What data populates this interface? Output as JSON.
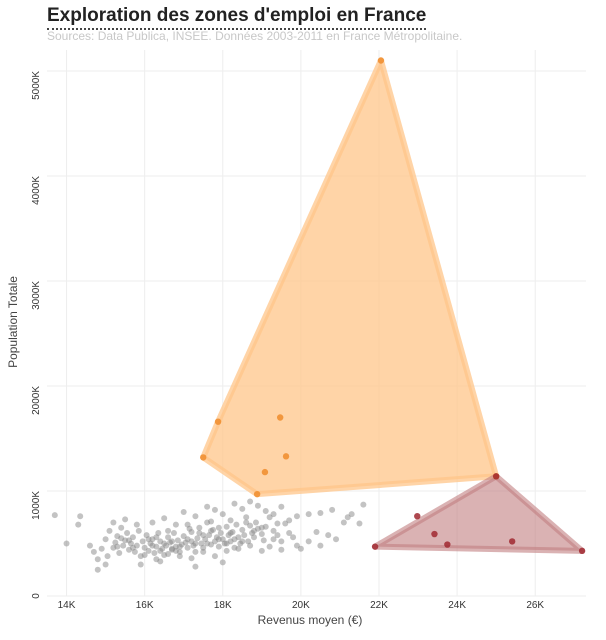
{
  "header": {
    "title": "Exploration des zones d'emploi en France",
    "subtitle": "Sources: Data Publica, INSEE. Données 2003-2011 en France Métropolitaine."
  },
  "colors": {
    "grey_points": "#888888",
    "orange_fill": "#ffc58a",
    "orange_points": "#f08c2c",
    "red_fill": "#c27e80",
    "red_points": "#a02830",
    "grid": "#eeeeee"
  },
  "chart_data": {
    "type": "scatter",
    "xlabel": "Revenus moyen (€)",
    "ylabel": "Population Totale",
    "xlim": [
      13500,
      27300
    ],
    "ylim": [
      0,
      5200000
    ],
    "x_ticks": [
      14000,
      16000,
      18000,
      20000,
      22000,
      24000,
      26000
    ],
    "x_tick_labels": [
      "14K",
      "16K",
      "18K",
      "20K",
      "22K",
      "24K",
      "26K"
    ],
    "y_ticks": [
      0,
      1000000,
      2000000,
      3000000,
      4000000,
      5000000
    ],
    "y_tick_labels": [
      "0",
      "1000K",
      "2000K",
      "3000K",
      "4000K",
      "5000K"
    ],
    "grid": true,
    "clusters": [
      {
        "color": "orange",
        "hull": [
          [
            22050,
            5100000
          ],
          [
            25000,
            1140000
          ],
          [
            18880,
            970000
          ],
          [
            17500,
            1320000
          ],
          [
            17880,
            1660000
          ]
        ],
        "points": [
          [
            22050,
            5100000
          ],
          [
            25000,
            1140000
          ],
          [
            18880,
            970000
          ],
          [
            17500,
            1320000
          ],
          [
            17880,
            1660000
          ],
          [
            19470,
            1700000
          ],
          [
            19620,
            1330000
          ],
          [
            19080,
            1180000
          ]
        ]
      },
      {
        "color": "red",
        "hull": [
          [
            25000,
            1140000
          ],
          [
            27200,
            430000
          ],
          [
            21900,
            470000
          ]
        ],
        "points": [
          [
            25000,
            1140000
          ],
          [
            27200,
            430000
          ],
          [
            21900,
            470000
          ],
          [
            22980,
            760000
          ],
          [
            23420,
            590000
          ],
          [
            23750,
            490000
          ],
          [
            25410,
            520000
          ]
        ]
      }
    ],
    "grey_points": [
      [
        13700,
        770000
      ],
      [
        14000,
        500000
      ],
      [
        14300,
        680000
      ],
      [
        14350,
        760000
      ],
      [
        14600,
        480000
      ],
      [
        14700,
        420000
      ],
      [
        14800,
        350000
      ],
      [
        14900,
        450000
      ],
      [
        15000,
        540000
      ],
      [
        15050,
        380000
      ],
      [
        15100,
        620000
      ],
      [
        15200,
        460000
      ],
      [
        15250,
        510000
      ],
      [
        15300,
        570000
      ],
      [
        15350,
        410000
      ],
      [
        15400,
        650000
      ],
      [
        15450,
        480000
      ],
      [
        15500,
        530000
      ],
      [
        15550,
        600000
      ],
      [
        15600,
        440000
      ],
      [
        15650,
        500000
      ],
      [
        15700,
        560000
      ],
      [
        15750,
        420000
      ],
      [
        15800,
        480000
      ],
      [
        15850,
        620000
      ],
      [
        15900,
        380000
      ],
      [
        15950,
        520000
      ],
      [
        16000,
        460000
      ],
      [
        16050,
        580000
      ],
      [
        16100,
        430000
      ],
      [
        16150,
        500000
      ],
      [
        16200,
        540000
      ],
      [
        16250,
        410000
      ],
      [
        16300,
        470000
      ],
      [
        16350,
        600000
      ],
      [
        16400,
        520000
      ],
      [
        16450,
        450000
      ],
      [
        16500,
        390000
      ],
      [
        16550,
        480000
      ],
      [
        16600,
        560000
      ],
      [
        16650,
        510000
      ],
      [
        16700,
        440000
      ],
      [
        16750,
        600000
      ],
      [
        16800,
        470000
      ],
      [
        16850,
        530000
      ],
      [
        16900,
        420000
      ],
      [
        16950,
        490000
      ],
      [
        17000,
        570000
      ],
      [
        17050,
        510000
      ],
      [
        17100,
        460000
      ],
      [
        17150,
        640000
      ],
      [
        17200,
        520000
      ],
      [
        17250,
        480000
      ],
      [
        17300,
        420000
      ],
      [
        17350,
        550000
      ],
      [
        17400,
        600000
      ],
      [
        17450,
        500000
      ],
      [
        17500,
        460000
      ],
      [
        17550,
        540000
      ],
      [
        17600,
        700000
      ],
      [
        17650,
        580000
      ],
      [
        17700,
        490000
      ],
      [
        17750,
        630000
      ],
      [
        17800,
        520000
      ],
      [
        17850,
        560000
      ],
      [
        17900,
        470000
      ],
      [
        17950,
        600000
      ],
      [
        18000,
        540000
      ],
      [
        18050,
        500000
      ],
      [
        18100,
        660000
      ],
      [
        18150,
        580000
      ],
      [
        18200,
        720000
      ],
      [
        18250,
        610000
      ],
      [
        18300,
        540000
      ],
      [
        18350,
        680000
      ],
      [
        18400,
        560000
      ],
      [
        18450,
        500000
      ],
      [
        18500,
        630000
      ],
      [
        18550,
        580000
      ],
      [
        18600,
        750000
      ],
      [
        18650,
        520000
      ],
      [
        18700,
        670000
      ],
      [
        18750,
        600000
      ],
      [
        18800,
        560000
      ],
      [
        18850,
        700000
      ],
      [
        18900,
        640000
      ],
      [
        19000,
        590000
      ],
      [
        19050,
        530000
      ],
      [
        19100,
        660000
      ],
      [
        19200,
        750000
      ],
      [
        19300,
        620000
      ],
      [
        19400,
        580000
      ],
      [
        19500,
        520000
      ],
      [
        19600,
        690000
      ],
      [
        19700,
        600000
      ],
      [
        19800,
        560000
      ],
      [
        19900,
        480000
      ],
      [
        20000,
        450000
      ],
      [
        20200,
        520000
      ],
      [
        20400,
        610000
      ],
      [
        20500,
        480000
      ],
      [
        20700,
        580000
      ],
      [
        20900,
        540000
      ],
      [
        21100,
        700000
      ],
      [
        21300,
        780000
      ],
      [
        21500,
        690000
      ],
      [
        16200,
        700000
      ],
      [
        16500,
        740000
      ],
      [
        16800,
        680000
      ],
      [
        17000,
        800000
      ],
      [
        17300,
        760000
      ],
      [
        17600,
        850000
      ],
      [
        17800,
        820000
      ],
      [
        18000,
        780000
      ],
      [
        18300,
        880000
      ],
      [
        18500,
        830000
      ],
      [
        18700,
        900000
      ],
      [
        18900,
        860000
      ],
      [
        19100,
        810000
      ],
      [
        19300,
        780000
      ],
      [
        19500,
        850000
      ],
      [
        19700,
        720000
      ],
      [
        19900,
        760000
      ],
      [
        20200,
        780000
      ],
      [
        20500,
        790000
      ],
      [
        20800,
        820000
      ],
      [
        21200,
        750000
      ],
      [
        21600,
        870000
      ],
      [
        15200,
        700000
      ],
      [
        15500,
        730000
      ],
      [
        15800,
        680000
      ],
      [
        15400,
        550000
      ],
      [
        15700,
        460000
      ],
      [
        16000,
        390000
      ],
      [
        16300,
        350000
      ],
      [
        16600,
        400000
      ],
      [
        16900,
        380000
      ],
      [
        17200,
        360000
      ],
      [
        17500,
        420000
      ],
      [
        17800,
        380000
      ],
      [
        18100,
        430000
      ],
      [
        18400,
        450000
      ],
      [
        18700,
        480000
      ],
      [
        19000,
        430000
      ],
      [
        19200,
        470000
      ],
      [
        19500,
        440000
      ],
      [
        15900,
        300000
      ],
      [
        16400,
        330000
      ],
      [
        17300,
        280000
      ],
      [
        18000,
        320000
      ],
      [
        15000,
        300000
      ],
      [
        14800,
        250000
      ],
      [
        16100,
        540000
      ],
      [
        16600,
        620000
      ],
      [
        17100,
        680000
      ],
      [
        17400,
        650000
      ],
      [
        17700,
        710000
      ],
      [
        18200,
        600000
      ],
      [
        18600,
        700000
      ],
      [
        19000,
        650000
      ],
      [
        19400,
        690000
      ],
      [
        16700,
        520000
      ],
      [
        16900,
        470000
      ],
      [
        17100,
        540000
      ],
      [
        17300,
        500000
      ],
      [
        17500,
        580000
      ],
      [
        17700,
        620000
      ],
      [
        17900,
        540000
      ],
      [
        18100,
        500000
      ],
      [
        18300,
        460000
      ],
      [
        18500,
        520000
      ],
      [
        16300,
        560000
      ],
      [
        16500,
        500000
      ],
      [
        16400,
        430000
      ],
      [
        16700,
        450000
      ],
      [
        16200,
        480000
      ],
      [
        17200,
        610000
      ],
      [
        17600,
        500000
      ],
      [
        17900,
        650000
      ],
      [
        18200,
        520000
      ],
      [
        18800,
        620000
      ],
      [
        19300,
        540000
      ],
      [
        15600,
        530000
      ],
      [
        15300,
        470000
      ],
      [
        16800,
        430000
      ]
    ]
  }
}
